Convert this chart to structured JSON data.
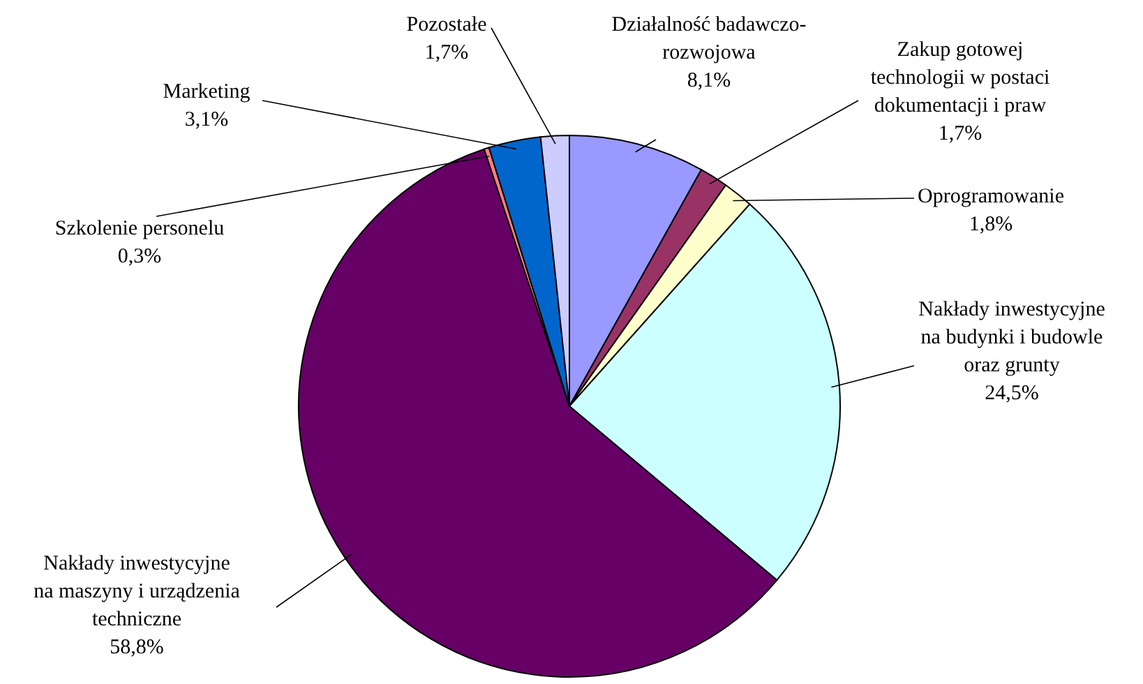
{
  "chart_data": {
    "type": "pie",
    "categories": [
      "Działalność badawczo-rozwojowa",
      "Zakup gotowej technologii w postaci dokumentacji i praw",
      "Oprogramowanie",
      "Nakłady inwestycyjne na budynki i budowle oraz grunty",
      "Nakłady inwestycyjne na maszyny i urządzenia techniczne",
      "Szkolenie personelu",
      "Marketing",
      "Pozostałe"
    ],
    "values": [
      8.1,
      1.7,
      1.8,
      24.5,
      58.8,
      0.3,
      3.1,
      1.7
    ],
    "colors": [
      "#9999ff",
      "#993366",
      "#ffffcc",
      "#ccffff",
      "#660066",
      "#ff8080",
      "#0066cc",
      "#ccccff"
    ],
    "value_labels": [
      "8,1%",
      "1,7%",
      "1,8%",
      "24,5%",
      "58,8%",
      "0,3%",
      "3,1%",
      "1,7%"
    ]
  }
}
